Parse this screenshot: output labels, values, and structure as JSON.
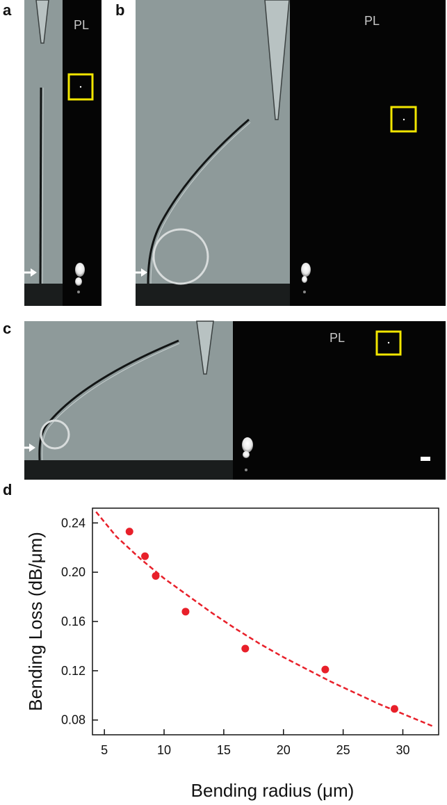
{
  "panels": {
    "a": {
      "letter": "a",
      "pl_label": "PL"
    },
    "b": {
      "letter": "b",
      "pl_label": "PL"
    },
    "c": {
      "letter": "c",
      "pl_label": "PL"
    },
    "d": {
      "letter": "d"
    }
  },
  "colors": {
    "brightfield": "#8e9a9a",
    "dark": "#050505",
    "highlight_box": "#f2e600",
    "data": "#e8202a",
    "fit": "#e8202a"
  },
  "chart_data": {
    "type": "scatter",
    "xlabel": "Bending radius (μm)",
    "ylabel": "Bending Loss (dB/μm)",
    "xlim": [
      4,
      33
    ],
    "ylim": [
      0.068,
      0.252
    ],
    "xticks": [
      5,
      10,
      15,
      20,
      25,
      30
    ],
    "yticks": [
      0.08,
      0.12,
      0.16,
      0.2,
      0.24
    ],
    "xtick_labels": [
      "5",
      "10",
      "15",
      "20",
      "25",
      "30"
    ],
    "ytick_labels": [
      "0.08",
      "0.12",
      "0.16",
      "0.20",
      "0.24"
    ],
    "grid": false,
    "series": [
      {
        "style": "markers",
        "x": [
          7.1,
          8.4,
          9.3,
          11.8,
          16.8,
          23.5,
          29.3
        ],
        "y": [
          0.233,
          0.213,
          0.197,
          0.168,
          0.138,
          0.121,
          0.089
        ]
      },
      {
        "style": "dashed-fit",
        "x": [
          4.3,
          6,
          8,
          10,
          12,
          14,
          16,
          18,
          20,
          22,
          24,
          26,
          28,
          30,
          32.5
        ],
        "y": [
          0.249,
          0.229,
          0.211,
          0.195,
          0.181,
          0.167,
          0.154,
          0.142,
          0.131,
          0.121,
          0.111,
          0.102,
          0.093,
          0.085,
          0.075
        ]
      }
    ]
  }
}
